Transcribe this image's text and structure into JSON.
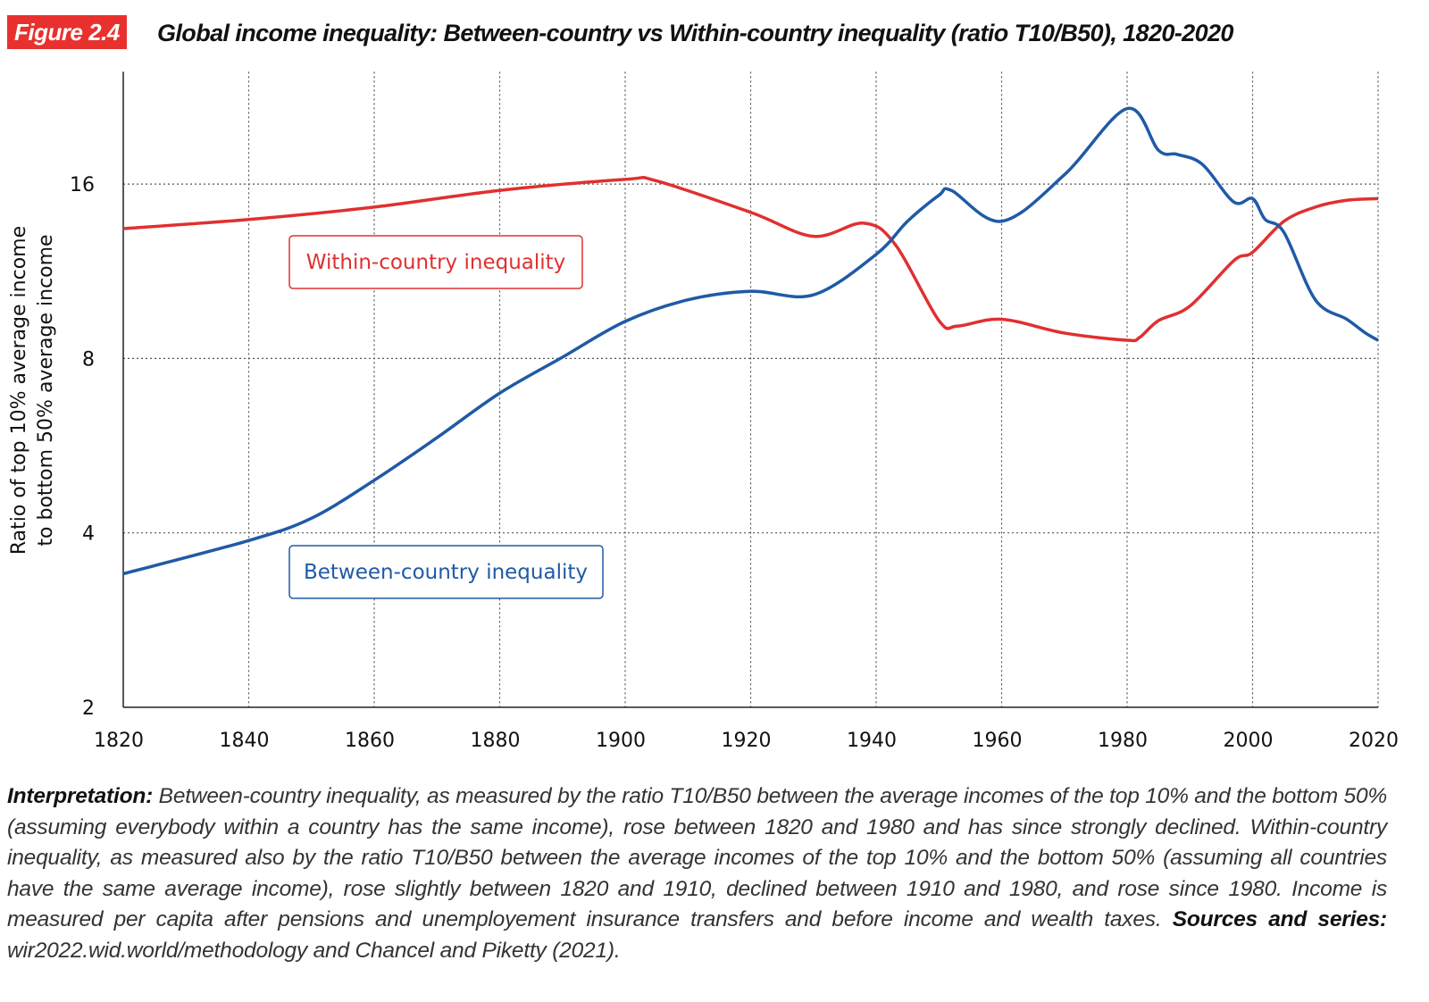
{
  "figure_label": "Figure 2.4",
  "title": "Global income inequality: Between-country vs Within-country inequality (ratio T10/B50), 1820-2020",
  "chart_data": {
    "type": "line",
    "title": "Global income inequality: Between-country vs Within-country inequality (ratio T10/B50), 1820-2020",
    "ylabel": [
      "Ratio of top 10% average income",
      "to bottom 50% average income"
    ],
    "xlabel": "",
    "y_scale": "log2",
    "ylim": [
      2,
      25
    ],
    "xlim": [
      1820,
      2020
    ],
    "x_ticks": [
      "1820",
      "1840",
      "1860",
      "1880",
      "1900",
      "1920",
      "1940",
      "1960",
      "1980",
      "2000",
      "2020"
    ],
    "y_ticks": [
      "2",
      "4",
      "8",
      "16"
    ],
    "grid": "dotted, both axes",
    "series": [
      {
        "name": "Within-country inequality",
        "color": "#e03030",
        "x": [
          1820,
          1840,
          1860,
          1880,
          1900,
          1905,
          1920,
          1930,
          1938,
          1943,
          1950,
          1953,
          1960,
          1970,
          1980,
          1982,
          1985,
          1990,
          1997,
          2000,
          2005,
          2010,
          2015,
          2020
        ],
        "y": [
          13.4,
          13.9,
          14.6,
          15.6,
          16.3,
          16.2,
          14.3,
          13.0,
          13.7,
          12.6,
          9.3,
          9.1,
          9.35,
          8.85,
          8.6,
          8.7,
          9.3,
          9.85,
          11.8,
          12.2,
          13.8,
          14.6,
          15.0,
          15.1
        ]
      },
      {
        "name": "Between-country inequality",
        "color": "#1f5aa6",
        "x": [
          1820,
          1840,
          1850,
          1860,
          1870,
          1880,
          1890,
          1900,
          1910,
          1920,
          1930,
          1940,
          1945,
          1950,
          1952,
          1960,
          1970,
          1980,
          1985,
          1988,
          1992,
          1997,
          2000,
          2002,
          2005,
          2010,
          2015,
          2018,
          2020
        ],
        "y": [
          3.4,
          3.88,
          4.24,
          4.93,
          5.84,
          6.97,
          8.04,
          9.27,
          10.1,
          10.45,
          10.3,
          12.1,
          13.8,
          15.3,
          15.6,
          13.8,
          16.6,
          21.6,
          18.3,
          18.0,
          17.3,
          14.9,
          15.1,
          13.9,
          13.2,
          10.1,
          9.35,
          8.85,
          8.6
        ]
      }
    ]
  },
  "note": {
    "interp_label": "Interpretation:",
    "interp_text": " Between-country inequality, as measured by the ratio T10/B50 between the average incomes of the top 10% and the bottom 50% (assuming everybody within a country has the same income), rose between 1820 and 1980 and has since strongly declined. Within-country inequality, as measured also by the ratio T10/B50 between the average incomes of the top 10% and the bottom 50% (assuming all countries have the same average income), rose slightly between 1820 and 1910, declined between 1910 and 1980, and rose since 1980. Income is measured per capita after pensions and unemployement insurance transfers and before income and wealth taxes. ",
    "sources_label": "Sources and series:",
    "sources_text": " wir2022.wid.world/methodology and Chancel and Piketty (2021)."
  }
}
